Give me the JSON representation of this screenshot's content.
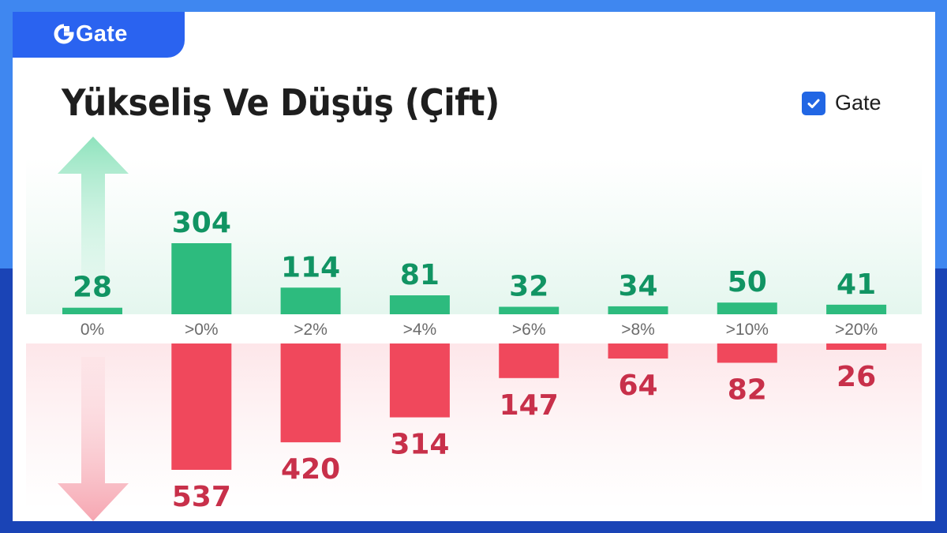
{
  "brand": {
    "name": "Gate"
  },
  "title": "Yükseliş Ve Düşüş (Çift)",
  "legend": {
    "label": "Gate",
    "checked": true
  },
  "colors": {
    "up": "#2dbb7e",
    "up_text": "#119463",
    "down": "#f0485c",
    "down_text": "#c8304a",
    "accent": "#2166e4",
    "frame_top": "#3f87f0",
    "frame_bottom": "#1a44b6"
  },
  "chart_data": {
    "type": "bar",
    "categories": [
      "0%",
      ">0%",
      ">2%",
      ">4%",
      ">6%",
      ">8%",
      ">10%",
      ">20%"
    ],
    "series": [
      {
        "direction": "up",
        "values": [
          28,
          304,
          114,
          81,
          32,
          34,
          50,
          41
        ]
      },
      {
        "direction": "down",
        "values": [
          null,
          537,
          420,
          314,
          147,
          64,
          82,
          26
        ]
      }
    ],
    "icons": [
      "arrow-up-icon",
      "arrow-down-icon"
    ]
  }
}
